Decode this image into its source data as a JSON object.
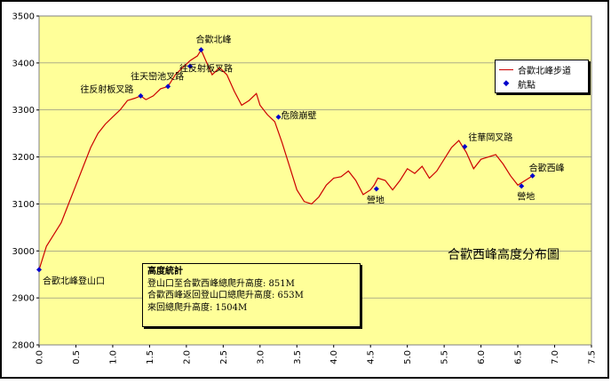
{
  "chart_data": {
    "type": "line",
    "title": "合歡西峰高度分布圖",
    "xlabel": "",
    "ylabel": "",
    "xlim": [
      0.0,
      7.5
    ],
    "ylim": [
      2800,
      3500
    ],
    "x_ticks": [
      "0.0",
      "0.5",
      "1.0",
      "1.5",
      "2.0",
      "2.5",
      "3.0",
      "3.5",
      "4.0",
      "4.5",
      "5.0",
      "5.5",
      "6.0",
      "6.5",
      "7.0",
      "7.5"
    ],
    "y_ticks": [
      "2800",
      "2900",
      "3000",
      "3100",
      "3200",
      "3300",
      "3400",
      "3500"
    ],
    "grid": true,
    "legend_position": "top-right",
    "colors": {
      "plot_bg": "#ffff99",
      "line": "#cc0000",
      "point": "#0000cc",
      "frame": "#000000"
    },
    "series": [
      {
        "name": "合歡北峰步道",
        "type": "line",
        "x": [
          0.0,
          0.1,
          0.2,
          0.3,
          0.4,
          0.5,
          0.6,
          0.7,
          0.8,
          0.9,
          1.0,
          1.1,
          1.2,
          1.3,
          1.38,
          1.45,
          1.55,
          1.65,
          1.75,
          1.85,
          1.95,
          2.05,
          2.15,
          2.2,
          2.25,
          2.35,
          2.45,
          2.55,
          2.65,
          2.75,
          2.85,
          2.95,
          3.0,
          3.1,
          3.2,
          3.3,
          3.4,
          3.5,
          3.6,
          3.7,
          3.8,
          3.9,
          4.0,
          4.1,
          4.2,
          4.3,
          4.4,
          4.5,
          4.55,
          4.6,
          4.7,
          4.8,
          4.9,
          5.0,
          5.1,
          5.2,
          5.3,
          5.4,
          5.5,
          5.6,
          5.7,
          5.75,
          5.8,
          5.9,
          6.0,
          6.1,
          6.2,
          6.3,
          6.4,
          6.5,
          6.55,
          6.6,
          6.7
        ],
        "y": [
          2960,
          3010,
          3035,
          3060,
          3100,
          3140,
          3180,
          3220,
          3250,
          3270,
          3285,
          3300,
          3320,
          3325,
          3330,
          3322,
          3330,
          3345,
          3350,
          3375,
          3390,
          3405,
          3415,
          3428,
          3410,
          3375,
          3390,
          3375,
          3340,
          3310,
          3320,
          3335,
          3310,
          3290,
          3275,
          3230,
          3180,
          3130,
          3105,
          3100,
          3115,
          3140,
          3155,
          3158,
          3170,
          3150,
          3120,
          3130,
          3140,
          3155,
          3150,
          3130,
          3150,
          3175,
          3165,
          3180,
          3155,
          3170,
          3195,
          3220,
          3235,
          3222,
          3210,
          3175,
          3195,
          3200,
          3205,
          3185,
          3160,
          3140,
          3145,
          3150,
          3160
        ]
      },
      {
        "name": "航點",
        "type": "scatter",
        "x": [
          0.0,
          1.38,
          1.75,
          2.05,
          2.2,
          3.25,
          4.58,
          5.78,
          6.55,
          6.7
        ],
        "y": [
          2960,
          3330,
          3350,
          3393,
          3428,
          3285,
          3132,
          3222,
          3138,
          3160
        ]
      }
    ],
    "annotations": [
      {
        "text": "合歡北峰登山口",
        "x": 0.0,
        "y": 2960
      },
      {
        "text": "往反射板叉路",
        "x": 1.38,
        "y": 3330
      },
      {
        "text": "往天巒池叉路",
        "x": 1.75,
        "y": 3350
      },
      {
        "text": "往反射板叉路",
        "x": 2.05,
        "y": 3393
      },
      {
        "text": "合歡北峰",
        "x": 2.2,
        "y": 3428
      },
      {
        "text": "危險崩壁",
        "x": 3.25,
        "y": 3285
      },
      {
        "text": "營地",
        "x": 4.58,
        "y": 3132
      },
      {
        "text": "往華岡叉路",
        "x": 5.78,
        "y": 3222
      },
      {
        "text": "營地",
        "x": 6.55,
        "y": 3138
      },
      {
        "text": "合歡西峰",
        "x": 6.7,
        "y": 3160
      }
    ],
    "stats_box": {
      "title": "高度統計",
      "lines": [
        "登山口至合歡西峰總爬升高度: 851M",
        "合歡西峰返回登山口總爬升高度: 653M",
        "來回總爬升高度: 1504M"
      ]
    }
  }
}
